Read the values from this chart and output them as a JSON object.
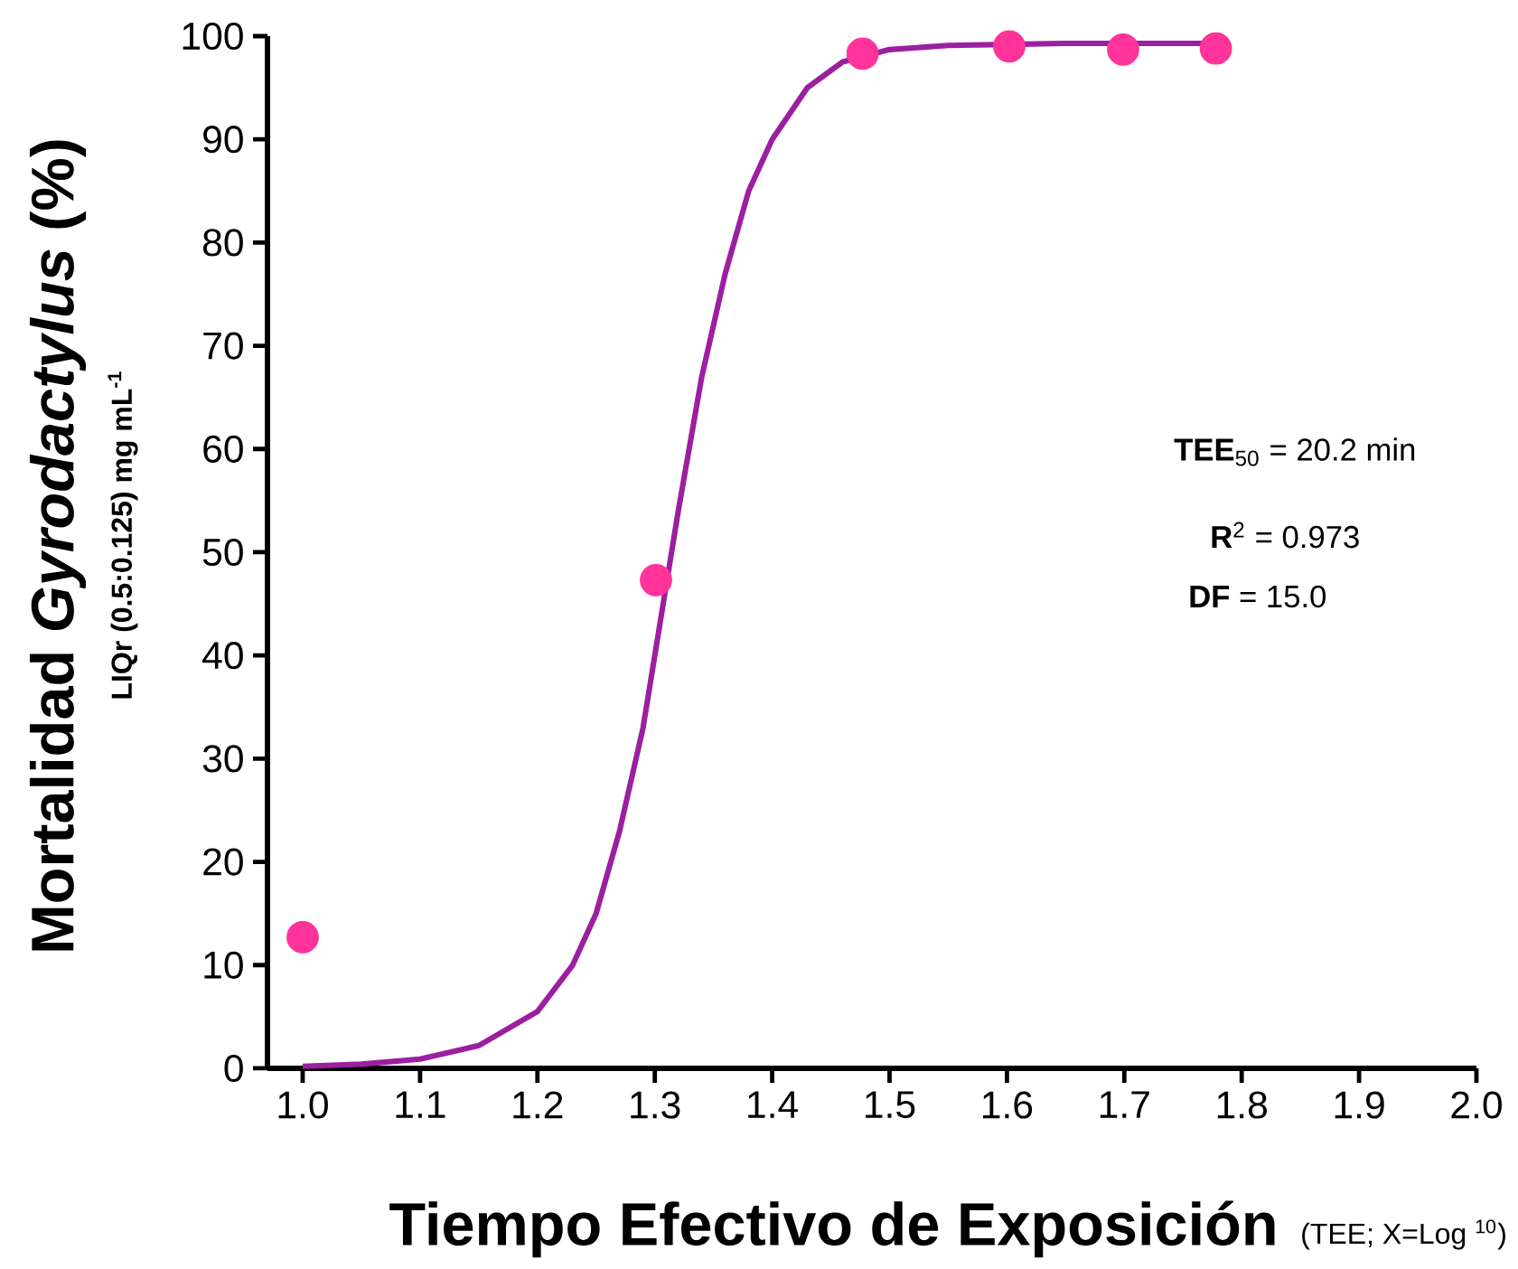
{
  "chart_data": {
    "type": "scatter",
    "ylabel": "Mortalidad *Gyrodactylus* (%)",
    "xlabel": "Tiempo Efectivo de Exposición",
    "annotations": [
      "LIQr (0.5:0.125) mg mL$^{-1}$",
      "(TEE; X=Log $^{10}$)",
      "**TEE**$_{50}$ = 20.2 min",
      "**R**$^{2}$ =  0.973",
      "**DF** = 15.0"
    ],
    "xlim": [
      0.97,
      2.0
    ],
    "xticks": [
      {
        "value": 1.0,
        "label": "1.0"
      },
      {
        "value": 1.1,
        "label": "1.1"
      },
      {
        "value": 1.2,
        "label": "1.2"
      },
      {
        "value": 1.3,
        "label": "1.3"
      },
      {
        "value": 1.4,
        "label": "1.4"
      },
      {
        "value": 1.5,
        "label": "1.5"
      },
      {
        "value": 1.6,
        "label": "1.6"
      },
      {
        "value": 1.7,
        "label": "1.7"
      },
      {
        "value": 1.8,
        "label": "1.8"
      },
      {
        "value": 1.9,
        "label": "1.9"
      },
      {
        "value": 2.0,
        "label": "2.0"
      }
    ],
    "ylim": [
      0,
      100
    ],
    "yticks": [
      0,
      10,
      20,
      30,
      40,
      50,
      60,
      70,
      80,
      90,
      100
    ],
    "series": [
      {
        "type": "line",
        "color": "#9b1fa0",
        "marker": "none",
        "line_style": "solid",
        "x": [
          1.0,
          1.05,
          1.1,
          1.15,
          1.2,
          1.23,
          1.25,
          1.27,
          1.29,
          1.32,
          1.34,
          1.36,
          1.38,
          1.4,
          1.43,
          1.46,
          1.5,
          1.55,
          1.6,
          1.65,
          1.78
        ],
        "values": [
          0.2,
          0.4,
          0.9,
          2.2,
          5.5,
          10,
          15,
          23,
          33,
          54,
          67,
          77,
          85,
          90,
          95,
          97.5,
          98.7,
          99.1,
          99.2,
          99.3,
          99.3
        ]
      },
      {
        "type": "scatter",
        "color": "#ff3399",
        "marker": "circle",
        "x": [
          1.0,
          1.301,
          1.477,
          1.602,
          1.699,
          1.778
        ],
        "values": [
          12.7,
          47.3,
          98.3,
          99.0,
          98.7,
          98.8
        ]
      }
    ]
  }
}
